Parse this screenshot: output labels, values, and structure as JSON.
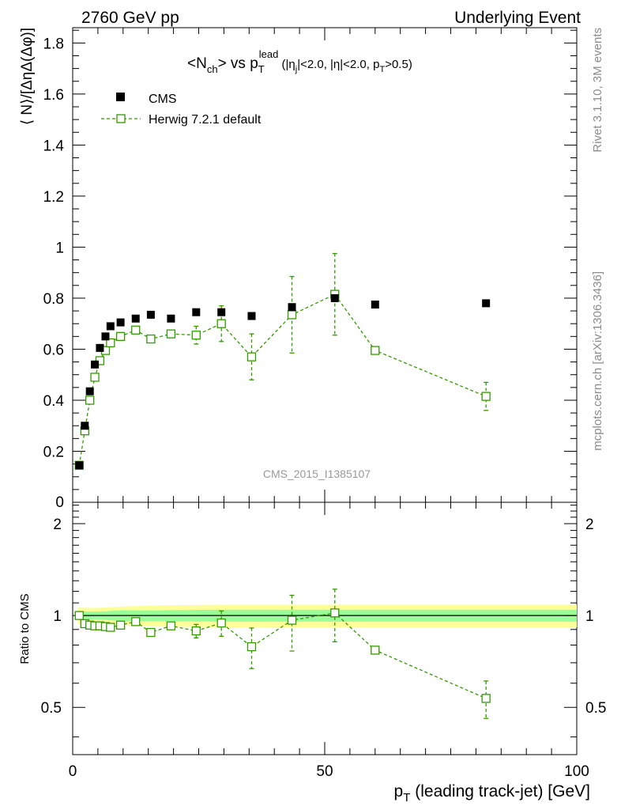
{
  "header": {
    "left": "2760 GeV pp",
    "right": "Underlying Event"
  },
  "side_texts": {
    "rivet": "Rivet 3.1.10,  3M events",
    "mcplots": "mcplots.cern.ch [arXiv:1306.3436]"
  },
  "watermark": "CMS_2015_I1385107",
  "colors": {
    "data": "#000000",
    "mc": "#339900",
    "band_inner": "#99ff99",
    "band_outer": "#ffff99"
  },
  "chart_data": [
    {
      "type": "scatter",
      "panel": "main",
      "title_parts": {
        "pre": "<N",
        "sub1": "ch",
        "mid": "> vs p",
        "sub2": "T",
        "sup2": "lead",
        "cut_pre": " (|η",
        "cut_sub1": "j",
        "cut_mid": "|<2.0, |η|<2.0, p",
        "cut_sub2": "T",
        "cut_post": ">0.5)"
      },
      "ylabel": "⟨ N⟩/[ΔηΔ(Δφ)]",
      "xlim": [
        0,
        100
      ],
      "ylim": [
        0,
        1.86
      ],
      "yticks": [
        0.2,
        0.4,
        0.6,
        0.8,
        1,
        1.2,
        1.4,
        1.6,
        1.8
      ],
      "ytick_labels": [
        "0.2",
        "0.4",
        "0.6",
        "0.8",
        "1",
        "1.2",
        "1.4",
        "1.6",
        "1.8"
      ],
      "y_zero_label": "0",
      "legend": [
        {
          "name": "CMS"
        },
        {
          "name": "Herwig 7.2.1 default"
        }
      ],
      "legend_position": "top-left",
      "series": [
        {
          "name": "CMS",
          "x": [
            1.3,
            2.4,
            3.4,
            4.4,
            5.4,
            6.5,
            7.5,
            9.5,
            12.5,
            15.5,
            19.5,
            24.5,
            29.5,
            35.5,
            43.5,
            52.0,
            60.0,
            82.0
          ],
          "y": [
            0.145,
            0.3,
            0.435,
            0.54,
            0.605,
            0.65,
            0.69,
            0.705,
            0.72,
            0.735,
            0.72,
            0.745,
            0.745,
            0.73,
            0.765,
            0.8,
            0.775,
            0.78
          ]
        },
        {
          "name": "Herwig 7.2.1 default",
          "x": [
            1.3,
            2.4,
            3.4,
            4.4,
            5.4,
            6.5,
            7.5,
            9.5,
            12.5,
            15.5,
            19.5,
            24.5,
            29.5,
            35.5,
            43.5,
            52.0,
            60.0,
            82.0
          ],
          "y": [
            0.145,
            0.28,
            0.4,
            0.49,
            0.555,
            0.595,
            0.625,
            0.65,
            0.675,
            0.64,
            0.66,
            0.655,
            0.7,
            0.57,
            0.735,
            0.815,
            0.595,
            0.415
          ],
          "yerr": [
            0.0,
            0.0,
            0.0,
            0.0,
            0.0,
            0.0,
            0.0,
            0.0,
            0.0,
            0.0,
            0.015,
            0.035,
            0.07,
            0.09,
            0.15,
            0.16,
            0.0,
            0.055
          ]
        }
      ]
    },
    {
      "type": "scatter",
      "panel": "ratio",
      "ylabel": "Ratio to CMS",
      "xlabel_pre": "p",
      "xlabel_sub": "T",
      "xlabel_post": " (leading track-jet) [GeV]",
      "xlim": [
        0,
        100
      ],
      "ylim": [
        0.35,
        2.35
      ],
      "xticks": [
        0,
        50,
        100
      ],
      "xtick_labels": [
        "0",
        "50",
        "100"
      ],
      "yticks": [
        0.5,
        1,
        2
      ],
      "ytick_labels": [
        "0.5",
        "1",
        "2"
      ],
      "reference": 1.0,
      "band": {
        "x": [
          1.0,
          5.0,
          10.0,
          17.0,
          30.0,
          45.0,
          60.0,
          100.0
        ],
        "inner": [
          0.03,
          0.03,
          0.04,
          0.04,
          0.045,
          0.045,
          0.045,
          0.045
        ],
        "outer": [
          0.06,
          0.06,
          0.07,
          0.08,
          0.085,
          0.085,
          0.085,
          0.085
        ]
      },
      "series": [
        {
          "name": "Herwig 7.2.1 default",
          "x": [
            1.3,
            2.4,
            3.4,
            4.4,
            5.4,
            6.5,
            7.5,
            9.5,
            12.5,
            15.5,
            19.5,
            24.5,
            29.5,
            35.5,
            43.5,
            52.0,
            60.0,
            82.0
          ],
          "y": [
            1.0,
            0.94,
            0.93,
            0.925,
            0.925,
            0.92,
            0.915,
            0.93,
            0.955,
            0.88,
            0.925,
            0.89,
            0.945,
            0.79,
            0.965,
            1.02,
            0.77,
            0.535
          ],
          "yerr": [
            0.0,
            0.0,
            0.0,
            0.0,
            0.0,
            0.0,
            0.0,
            0.0,
            0.0,
            0.0,
            0.02,
            0.045,
            0.09,
            0.12,
            0.2,
            0.2,
            0.0,
            0.075
          ]
        }
      ]
    }
  ]
}
